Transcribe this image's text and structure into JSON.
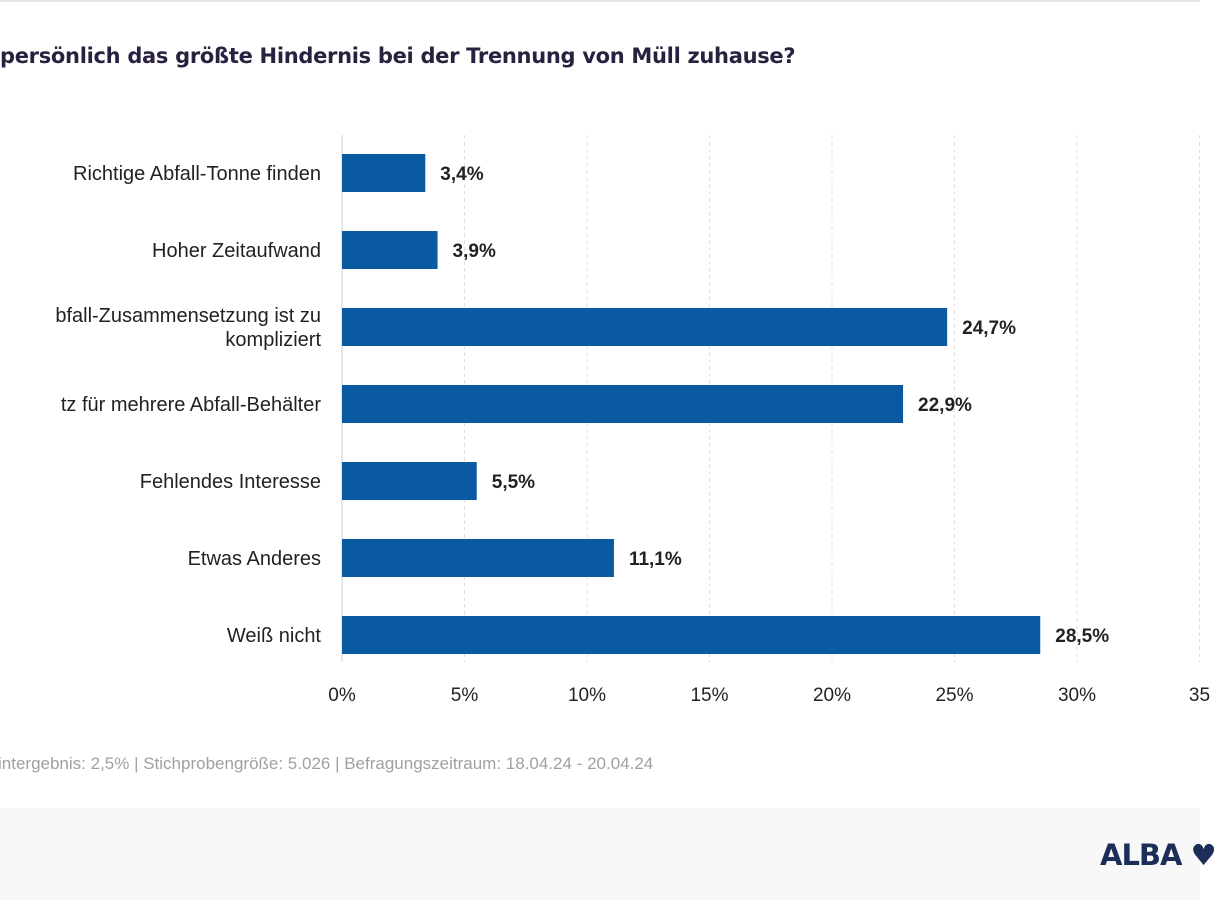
{
  "footnote": "intergebnis: 2,5% | Stichprobengröße: 5.026 | Befragungszeitraum: 18.04.24 - 20.04.24",
  "logo": "ALBA ♥",
  "colors": {
    "bar": "#0a5aa3",
    "grid": "#e0e0e0",
    "title": "#2a2140"
  },
  "chart_data": {
    "type": "bar",
    "orientation": "horizontal",
    "title": "persönlich das größte Hindernis bei der Trennung von Müll zuhause?",
    "categories": [
      "Richtige Abfall-Tonne finden",
      "Hoher Zeitaufwand",
      "bfall-Zusammensetzung ist zu kompliziert",
      "tz für mehrere Abfall-Behälter",
      "Fehlendes Interesse",
      "Etwas Anderes",
      "Weiß nicht"
    ],
    "values": [
      3.4,
      3.9,
      24.7,
      22.9,
      5.5,
      11.1,
      28.5
    ],
    "data_labels": [
      "3,4%",
      "3,9%",
      "24,7%",
      "22,9%",
      "5,5%",
      "11,1%",
      "28,5%"
    ],
    "xlim": [
      0,
      35
    ],
    "xticks": [
      0,
      5,
      10,
      15,
      20,
      25,
      30,
      35
    ],
    "xtick_labels": [
      "0%",
      "5%",
      "10%",
      "15%",
      "20%",
      "25%",
      "30%",
      "35"
    ],
    "grid": "vertical dashed"
  }
}
